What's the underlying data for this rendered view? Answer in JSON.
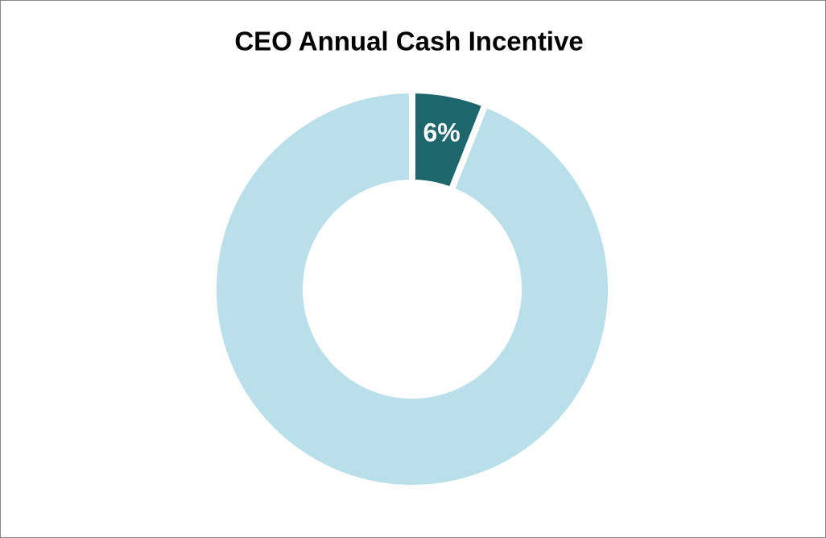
{
  "chart_data": {
    "type": "donut",
    "title": "CEO Annual Cash Incentive",
    "categories": [
      null,
      null
    ],
    "values": [
      6,
      94
    ],
    "value_labels": [
      "6%",
      null
    ],
    "colors": [
      "#1d666b",
      "#b8dfea"
    ]
  }
}
